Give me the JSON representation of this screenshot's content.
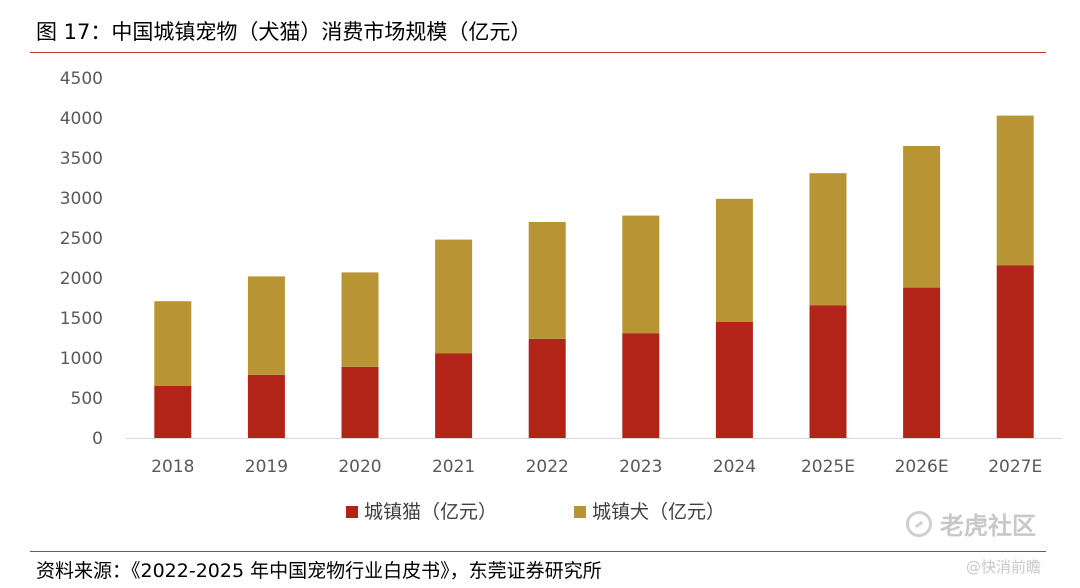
{
  "figure": {
    "title": "图 17：中国城镇宠物（犬猫）消费市场规模（亿元）",
    "source": "资料来源：《2022-2025 年中国宠物行业白皮书》，东莞证券研究所"
  },
  "watermark": {
    "text": "老虎社区",
    "sub": "@快消前瞻"
  },
  "chart_data": {
    "type": "bar",
    "stacked": true,
    "categories": [
      "2018",
      "2019",
      "2020",
      "2021",
      "2022",
      "2023",
      "2024",
      "2025E",
      "2026E",
      "2027E"
    ],
    "series": [
      {
        "name": "城镇猫（亿元）",
        "color": "#b22418",
        "values": [
          650,
          790,
          890,
          1060,
          1240,
          1310,
          1450,
          1660,
          1880,
          2160
        ]
      },
      {
        "name": "城镇犬（亿元）",
        "color": "#b99434",
        "values": [
          1060,
          1230,
          1180,
          1420,
          1460,
          1470,
          1540,
          1650,
          1770,
          1870
        ]
      }
    ],
    "ylim": [
      0,
      4500
    ],
    "yticks": [
      "0",
      "500",
      "1000",
      "1500",
      "2000",
      "2500",
      "3000",
      "3500",
      "4000",
      "4500"
    ],
    "grid": false,
    "legend": "bottom-center"
  }
}
